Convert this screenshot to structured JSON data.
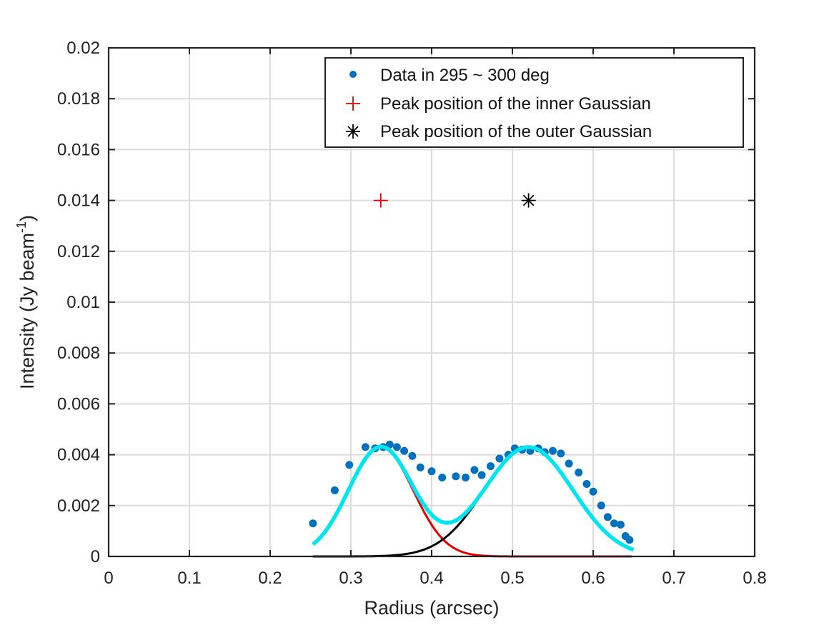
{
  "chart_data": {
    "type": "scatter",
    "xlabel": "Radius (arcsec)",
    "ylabel": "Intensity (Jy beam",
    "ylabel_sup": "-1",
    "ylabel_close": ")",
    "xlim": [
      0,
      0.8
    ],
    "ylim": [
      0,
      0.02
    ],
    "xticks": [
      0,
      0.1,
      0.2,
      0.3,
      0.4,
      0.5,
      0.6,
      0.7,
      0.8
    ],
    "xtick_labels": [
      "0",
      "0.1",
      "0.2",
      "0.3",
      "0.4",
      "0.5",
      "0.6",
      "0.7",
      "0.8"
    ],
    "yticks": [
      0,
      0.002,
      0.004,
      0.006,
      0.008,
      0.01,
      0.012,
      0.014,
      0.016,
      0.018,
      0.02
    ],
    "ytick_labels": [
      "0",
      "0.002",
      "0.004",
      "0.006",
      "0.008",
      "0.01",
      "0.012",
      "0.014",
      "0.016",
      "0.018",
      "0.02"
    ],
    "grid": true,
    "legend_position": "top-right",
    "data_points": {
      "name": "Data in 295 ~ 300 deg",
      "color": "#0072BD",
      "points": [
        [
          0.253,
          0.0013
        ],
        [
          0.28,
          0.0026
        ],
        [
          0.298,
          0.0036
        ],
        [
          0.318,
          0.0043
        ],
        [
          0.33,
          0.00425
        ],
        [
          0.34,
          0.0043
        ],
        [
          0.348,
          0.0044
        ],
        [
          0.357,
          0.0043
        ],
        [
          0.366,
          0.00415
        ],
        [
          0.376,
          0.00395
        ],
        [
          0.386,
          0.0035
        ],
        [
          0.4,
          0.00335
        ],
        [
          0.413,
          0.0031
        ],
        [
          0.43,
          0.00315
        ],
        [
          0.442,
          0.0031
        ],
        [
          0.453,
          0.0034
        ],
        [
          0.462,
          0.0032
        ],
        [
          0.473,
          0.00355
        ],
        [
          0.484,
          0.00385
        ],
        [
          0.495,
          0.004
        ],
        [
          0.503,
          0.00425
        ],
        [
          0.512,
          0.0042
        ],
        [
          0.522,
          0.00415
        ],
        [
          0.532,
          0.00425
        ],
        [
          0.54,
          0.0041
        ],
        [
          0.55,
          0.00415
        ],
        [
          0.56,
          0.00405
        ],
        [
          0.57,
          0.00365
        ],
        [
          0.582,
          0.0033
        ],
        [
          0.592,
          0.00285
        ],
        [
          0.6,
          0.00255
        ],
        [
          0.61,
          0.002
        ],
        [
          0.618,
          0.00155
        ],
        [
          0.626,
          0.0013
        ],
        [
          0.634,
          0.00125
        ],
        [
          0.64,
          0.0008
        ],
        [
          0.645,
          0.00065
        ]
      ]
    },
    "inner_gaussian": {
      "color": "#E00000",
      "amplitude": 0.0043,
      "center": 0.337,
      "sigma": 0.04,
      "x_range": [
        0.253,
        0.648
      ]
    },
    "outer_gaussian": {
      "color": "#000000",
      "amplitude": 0.0043,
      "center": 0.52,
      "sigma": 0.055,
      "x_range": [
        0.253,
        0.648
      ]
    },
    "total_fit": {
      "color": "#00E5EE",
      "x_range": [
        0.253,
        0.65
      ]
    },
    "peak_markers": [
      {
        "name": "Peak position of the inner Gaussian",
        "x": 0.337,
        "y": 0.014,
        "marker": "+",
        "color": "#E00000"
      },
      {
        "name": "Peak position of the outer Gaussian",
        "x": 0.52,
        "y": 0.014,
        "marker": "*",
        "color": "#000000"
      }
    ]
  }
}
